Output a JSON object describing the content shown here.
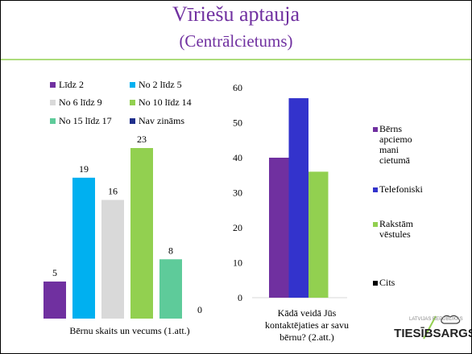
{
  "title": "Vīriešu aptauja",
  "subtitle": "(Centrālcietums)",
  "logo": {
    "top": "LATVIJAS REPUBLIKAS",
    "name": "TIESĪBSARGS"
  },
  "chart_data": [
    {
      "type": "bar",
      "xlabel": "Bērnu skaits un vecums (1.att.)",
      "series": [
        {
          "name": "Līdz 2",
          "color": "#7030a0",
          "values": [
            5
          ]
        },
        {
          "name": "No 2 līdz 5",
          "color": "#00b0f0",
          "values": [
            19
          ]
        },
        {
          "name": "No 6 līdz 9",
          "color": "#d9d9d9",
          "values": [
            16
          ]
        },
        {
          "name": "No 10 līdz 14",
          "color": "#92d050",
          "values": [
            23
          ]
        },
        {
          "name": "No 15 līdz 17",
          "color": "#5ecb9a",
          "values": [
            8
          ]
        },
        {
          "name": "Nav zināms",
          "color": "#1f2f8c",
          "values": [
            0
          ]
        }
      ]
    },
    {
      "type": "bar",
      "xlabel": "Kādā veidā Jūs kontaktējaties ar savu bērnu? (2.att.)",
      "ylim": [
        0,
        60
      ],
      "yticks": [
        0,
        10,
        20,
        30,
        40,
        50,
        60
      ],
      "series": [
        {
          "name": "Bērns apciemo mani cietumā",
          "color": "#7030a0",
          "values": [
            40
          ]
        },
        {
          "name": "Telefoniski",
          "color": "#3333cc",
          "values": [
            57
          ]
        },
        {
          "name": "Rakstām vēstules",
          "color": "#92d050",
          "values": [
            36
          ]
        },
        {
          "name": "Cits",
          "color": "#000000",
          "values": [
            0
          ]
        }
      ]
    }
  ]
}
